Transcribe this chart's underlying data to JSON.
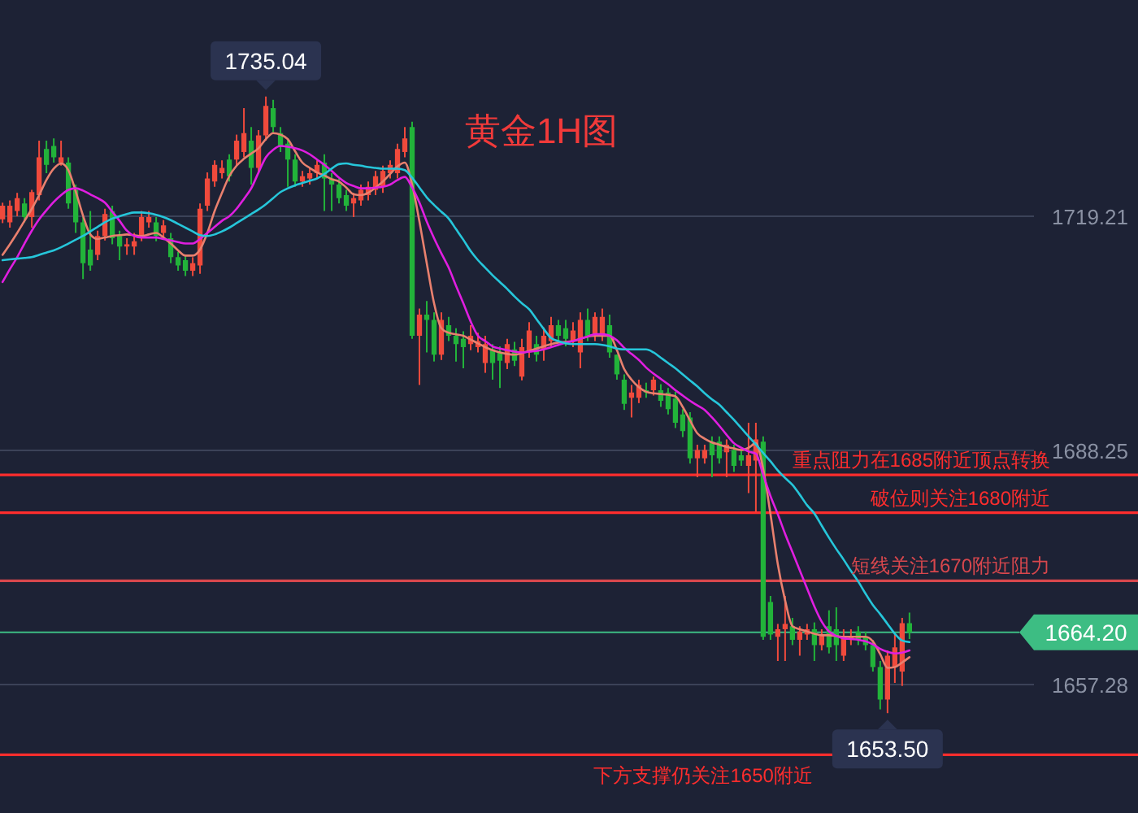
{
  "chart_data": {
    "type": "candlestick",
    "title": "黄金1H图",
    "categories": [
      null,
      null,
      null,
      null,
      null,
      null,
      null,
      null,
      null,
      null,
      null,
      null,
      null,
      null,
      null,
      null,
      null,
      null,
      null,
      null,
      null,
      null,
      null,
      null,
      null,
      null,
      null,
      null,
      null,
      null,
      null,
      null,
      null,
      null,
      null,
      null,
      null,
      null,
      null,
      null,
      null,
      null,
      null,
      null,
      null,
      null,
      null,
      null,
      null,
      null,
      null,
      null,
      null,
      null,
      null,
      null,
      null,
      null,
      null,
      null,
      null,
      null,
      null,
      null,
      null,
      null,
      null,
      null,
      null,
      null,
      null,
      null,
      null,
      null,
      null,
      null,
      null,
      null,
      null,
      null,
      null,
      null,
      null,
      null,
      null,
      null,
      null,
      null,
      null,
      null,
      null,
      null,
      null,
      null,
      null,
      null,
      null,
      null,
      null,
      null,
      null,
      null,
      null,
      null,
      null,
      null,
      null,
      null,
      null,
      null,
      null,
      null,
      null,
      null,
      null,
      null,
      null,
      null,
      null,
      null,
      null,
      null,
      null,
      null,
      null
    ],
    "ohlc": [
      [
        1718.8,
        1721.0,
        1718.3,
        1720.6
      ],
      [
        1718.4,
        1721.3,
        1717.7,
        1720.6
      ],
      [
        1719.9,
        1722.3,
        1719.2,
        1721.6
      ],
      [
        1720.9,
        1721.6,
        1718.4,
        1719.1
      ],
      [
        1719.1,
        1722.7,
        1717.7,
        1722.4
      ],
      [
        1722.0,
        1729.2,
        1721.3,
        1727.0
      ],
      [
        1728.1,
        1729.2,
        1724.9,
        1726.0
      ],
      [
        1728.5,
        1729.5,
        1726.3,
        1727.0
      ],
      [
        1726.3,
        1729.2,
        1725.9,
        1727.0
      ],
      [
        1726.3,
        1727.0,
        1720.2,
        1720.9
      ],
      [
        1722.7,
        1723.4,
        1717.0,
        1718.4
      ],
      [
        1718.4,
        1719.1,
        1710.9,
        1713.0
      ],
      [
        1714.8,
        1719.9,
        1712.0,
        1712.7
      ],
      [
        1714.1,
        1717.3,
        1713.4,
        1716.6
      ],
      [
        1716.6,
        1720.2,
        1716.0,
        1719.5
      ],
      [
        1719.9,
        1720.6,
        1715.5,
        1716.3
      ],
      [
        1716.6,
        1717.3,
        1713.4,
        1715.2
      ],
      [
        1715.2,
        1716.3,
        1714.1,
        1715.5
      ],
      [
        1715.2,
        1717.0,
        1714.1,
        1715.9
      ],
      [
        1716.6,
        1719.9,
        1715.9,
        1719.1
      ],
      [
        1718.4,
        1719.9,
        1717.7,
        1719.1
      ],
      [
        1718.4,
        1719.1,
        1715.9,
        1716.6
      ],
      [
        1717.0,
        1718.7,
        1716.3,
        1718.0
      ],
      [
        1716.3,
        1717.0,
        1713.0,
        1713.8
      ],
      [
        1713.8,
        1714.5,
        1712.0,
        1712.7
      ],
      [
        1713.4,
        1714.1,
        1711.3,
        1712.0
      ],
      [
        1712.0,
        1713.8,
        1711.3,
        1713.0
      ],
      [
        1712.7,
        1720.9,
        1711.6,
        1720.2
      ],
      [
        1720.6,
        1725.0,
        1719.9,
        1724.2
      ],
      [
        1723.8,
        1726.6,
        1723.1,
        1726.0
      ],
      [
        1724.9,
        1726.6,
        1724.2,
        1725.6
      ],
      [
        1726.7,
        1727.4,
        1723.8,
        1724.5
      ],
      [
        1726.7,
        1730.0,
        1725.9,
        1729.2
      ],
      [
        1727.7,
        1733.5,
        1727.0,
        1730.2
      ],
      [
        1729.2,
        1731.0,
        1723.4,
        1725.6
      ],
      [
        1725.6,
        1730.6,
        1724.9,
        1729.9
      ],
      [
        1729.9,
        1735.04,
        1729.2,
        1733.8
      ],
      [
        1733.5,
        1734.6,
        1730.3,
        1731.0
      ],
      [
        1730.2,
        1731.0,
        1727.7,
        1728.5
      ],
      [
        1728.8,
        1729.5,
        1723.1,
        1726.7
      ],
      [
        1726.7,
        1727.4,
        1723.1,
        1723.8
      ],
      [
        1723.8,
        1725.2,
        1723.1,
        1724.5
      ],
      [
        1724.2,
        1725.6,
        1723.4,
        1724.9
      ],
      [
        1724.9,
        1726.6,
        1724.2,
        1726.0
      ],
      [
        1726.3,
        1727.4,
        1719.9,
        1724.2
      ],
      [
        1724.2,
        1724.9,
        1719.9,
        1723.4
      ],
      [
        1723.4,
        1724.2,
        1720.9,
        1721.6
      ],
      [
        1722.0,
        1722.7,
        1719.9,
        1720.6
      ],
      [
        1720.9,
        1722.3,
        1719.1,
        1721.6
      ],
      [
        1721.3,
        1723.4,
        1720.6,
        1722.7
      ],
      [
        1722.0,
        1723.8,
        1721.3,
        1723.1
      ],
      [
        1722.7,
        1725.2,
        1722.0,
        1724.5
      ],
      [
        1723.1,
        1725.9,
        1722.3,
        1725.2
      ],
      [
        1724.9,
        1726.6,
        1724.2,
        1726.0
      ],
      [
        1724.9,
        1728.8,
        1724.2,
        1728.1
      ],
      [
        1727.7,
        1731.0,
        1727.0,
        1729.5
      ],
      [
        1731.0,
        1731.7,
        1703.0,
        1703.4
      ],
      [
        1703.4,
        1707.0,
        1696.9,
        1706.2
      ],
      [
        1706.2,
        1708.0,
        1701.2,
        1705.5
      ],
      [
        1705.5,
        1706.5,
        1700.0,
        1700.9
      ],
      [
        1700.9,
        1706.5,
        1700.2,
        1705.5
      ],
      [
        1704.8,
        1705.9,
        1702.7,
        1703.4
      ],
      [
        1703.4,
        1704.4,
        1700.0,
        1702.3
      ],
      [
        1703.0,
        1704.0,
        1699.1,
        1701.9
      ],
      [
        1702.3,
        1704.8,
        1701.5,
        1703.4
      ],
      [
        1701.9,
        1703.8,
        1701.2,
        1702.7
      ],
      [
        1699.8,
        1703.4,
        1698.5,
        1702.3
      ],
      [
        1701.6,
        1702.3,
        1697.6,
        1699.8
      ],
      [
        1701.2,
        1702.0,
        1696.5,
        1700.1
      ],
      [
        1699.8,
        1703.0,
        1699.0,
        1702.3
      ],
      [
        1701.6,
        1702.6,
        1699.4,
        1700.1
      ],
      [
        1698.0,
        1703.0,
        1697.5,
        1701.9
      ],
      [
        1701.2,
        1705.2,
        1700.5,
        1704.1
      ],
      [
        1702.3,
        1703.4,
        1700.0,
        1700.9
      ],
      [
        1701.6,
        1704.5,
        1700.1,
        1703.4
      ],
      [
        1702.7,
        1705.9,
        1702.0,
        1704.8
      ],
      [
        1704.8,
        1705.5,
        1702.7,
        1703.4
      ],
      [
        1704.4,
        1705.5,
        1702.0,
        1703.0
      ],
      [
        1702.7,
        1705.2,
        1701.9,
        1704.1
      ],
      [
        1701.2,
        1706.5,
        1699.1,
        1705.5
      ],
      [
        1705.5,
        1707.0,
        1702.7,
        1703.4
      ],
      [
        1703.7,
        1706.5,
        1702.7,
        1705.9
      ],
      [
        1703.4,
        1707.0,
        1702.7,
        1705.9
      ],
      [
        1704.8,
        1706.2,
        1700.5,
        1701.2
      ],
      [
        1700.9,
        1700.9,
        1697.6,
        1698.3
      ],
      [
        1697.6,
        1698.3,
        1693.6,
        1694.4
      ],
      [
        1695.2,
        1696.9,
        1692.6,
        1695.9
      ],
      [
        1695.2,
        1697.6,
        1694.5,
        1696.9
      ],
      [
        1696.2,
        1697.2,
        1695.2,
        1695.9
      ],
      [
        1696.2,
        1698.0,
        1695.5,
        1697.6
      ],
      [
        1696.2,
        1697.0,
        1694.0,
        1694.8
      ],
      [
        1695.9,
        1696.5,
        1693.0,
        1693.7
      ],
      [
        1695.1,
        1696.0,
        1691.2,
        1691.9
      ],
      [
        1693.0,
        1693.7,
        1690.0,
        1690.8
      ],
      [
        1692.6,
        1693.3,
        1686.5,
        1687.2
      ],
      [
        1687.2,
        1689.0,
        1684.7,
        1688.3
      ],
      [
        1687.2,
        1689.0,
        1686.5,
        1688.3
      ],
      [
        1689.4,
        1690.1,
        1684.7,
        1687.6
      ],
      [
        1689.4,
        1690.1,
        1686.5,
        1687.2
      ],
      [
        1688.0,
        1689.7,
        1684.7,
        1689.0
      ],
      [
        1688.3,
        1689.0,
        1685.4,
        1686.2
      ],
      [
        1687.6,
        1688.3,
        1686.2,
        1686.9
      ],
      [
        1686.2,
        1691.9,
        1682.6,
        1687.6
      ],
      [
        1686.9,
        1691.9,
        1680.1,
        1689.7
      ],
      [
        1689.4,
        1690.1,
        1663.2,
        1663.6
      ],
      [
        1668.2,
        1669.0,
        1663.2,
        1663.9
      ],
      [
        1663.6,
        1665.3,
        1660.4,
        1664.6
      ],
      [
        1664.6,
        1669.0,
        1660.4,
        1665.3
      ],
      [
        1665.0,
        1666.1,
        1662.5,
        1663.2
      ],
      [
        1663.2,
        1665.0,
        1661.1,
        1664.3
      ],
      [
        1663.9,
        1665.3,
        1663.2,
        1664.6
      ],
      [
        1664.6,
        1665.5,
        1660.4,
        1662.5
      ],
      [
        1662.5,
        1664.6,
        1661.8,
        1663.9
      ],
      [
        1665.0,
        1667.1,
        1661.4,
        1662.2
      ],
      [
        1664.6,
        1667.5,
        1660.4,
        1662.5
      ],
      [
        1661.1,
        1664.6,
        1660.4,
        1663.6
      ],
      [
        1663.2,
        1664.6,
        1662.5,
        1663.6
      ],
      [
        1664.3,
        1665.0,
        1662.5,
        1663.2
      ],
      [
        1663.6,
        1664.3,
        1661.8,
        1662.5
      ],
      [
        1662.5,
        1663.2,
        1659.0,
        1659.6
      ],
      [
        1659.6,
        1660.4,
        1654.0,
        1655.3
      ],
      [
        1655.3,
        1661.8,
        1653.5,
        1661.1
      ],
      [
        1659.6,
        1663.9,
        1657.5,
        1662.2
      ],
      [
        1659.0,
        1666.1,
        1657.1,
        1665.4
      ],
      [
        1665.4,
        1666.8,
        1663.3,
        1664.2
      ]
    ],
    "colors": [
      "#f04a3c",
      "#f04a3c",
      "#f04a3c",
      "#22b33a",
      "#f04a3c",
      "#f04a3c",
      "#22b33a",
      "#22b33a",
      "#f04a3c",
      "#22b33a",
      "#22b33a",
      "#22b33a",
      "#22b33a",
      "#f04a3c",
      "#f04a3c",
      "#22b33a",
      "#22b33a",
      "#f04a3c",
      "#f04a3c",
      "#f04a3c",
      "#f04a3c",
      "#22b33a",
      "#f04a3c",
      "#22b33a",
      "#22b33a",
      "#22b33a",
      "#f04a3c",
      "#f04a3c",
      "#f04a3c",
      "#f04a3c",
      "#f04a3c",
      "#22b33a",
      "#f04a3c",
      "#f04a3c",
      "#22b33a",
      "#f04a3c",
      "#f04a3c",
      "#22b33a",
      "#22b33a",
      "#22b33a",
      "#22b33a",
      "#f04a3c",
      "#f04a3c",
      "#f04a3c",
      "#22b33a",
      "#22b33a",
      "#22b33a",
      "#22b33a",
      "#f04a3c",
      "#f04a3c",
      "#f04a3c",
      "#f04a3c",
      "#f04a3c",
      "#f04a3c",
      "#f04a3c",
      "#f04a3c",
      "#22b33a",
      "#f04a3c",
      "#22b33a",
      "#22b33a",
      "#f04a3c",
      "#22b33a",
      "#22b33a",
      "#22b33a",
      "#f04a3c",
      "#f04a3c",
      "#f04a3c",
      "#22b33a",
      "#22b33a",
      "#f04a3c",
      "#22b33a",
      "#f04a3c",
      "#f04a3c",
      "#22b33a",
      "#f04a3c",
      "#f04a3c",
      "#22b33a",
      "#22b33a",
      "#f04a3c",
      "#f04a3c",
      "#22b33a",
      "#f04a3c",
      "#f04a3c",
      "#22b33a",
      "#22b33a",
      "#22b33a",
      "#f04a3c",
      "#f04a3c",
      "#22b33a",
      "#f04a3c",
      "#22b33a",
      "#22b33a",
      "#22b33a",
      "#22b33a",
      "#22b33a",
      "#f04a3c",
      "#f04a3c",
      "#22b33a",
      "#22b33a",
      "#f04a3c",
      "#22b33a",
      "#22b33a",
      "#f04a3c",
      "#f04a3c",
      "#22b33a",
      "#22b33a",
      "#f04a3c",
      "#f04a3c",
      "#22b33a",
      "#f04a3c",
      "#f04a3c",
      "#22b33a",
      "#f04a3c",
      "#22b33a",
      "#22b33a",
      "#f04a3c",
      "#f04a3c",
      "#22b33a",
      "#22b33a",
      "#22b33a",
      "#22b33a",
      "#f04a3c",
      "#f04a3c",
      "#f04a3c",
      "#22b33a"
    ],
    "series": [
      {
        "type": "line",
        "color": "#e9806e",
        "values": [
          1714.1,
          1715.5,
          1717.0,
          1718.6,
          1720.2,
          1722.0,
          1724.0,
          1725.5,
          1726.2,
          1725.3,
          1722.5,
          1719.3,
          1716.8,
          1716.2,
          1716.4,
          1716.6,
          1716.7,
          1716.8,
          1716.7,
          1716.6,
          1716.8,
          1717.0,
          1716.4,
          1715.6,
          1714.7,
          1714.0,
          1714.0,
          1714.8,
          1717.0,
          1719.9,
          1722.3,
          1724.5,
          1725.9,
          1726.8,
          1727.5,
          1728.2,
          1729.4,
          1730.2,
          1730.0,
          1729.4,
          1727.8,
          1726.3,
          1725.6,
          1725.0,
          1724.6,
          1724.1,
          1723.8,
          1723.0,
          1722.1,
          1722.0,
          1722.3,
          1723.0,
          1723.8,
          1724.8,
          1725.8,
          1726.3,
          1723.4,
          1718.5,
          1713.0,
          1707.7,
          1704.4,
          1703.8,
          1703.6,
          1703.4,
          1702.9,
          1702.4,
          1701.9,
          1701.5,
          1701.2,
          1701.0,
          1700.9,
          1701.1,
          1701.4,
          1701.7,
          1702.0,
          1702.3,
          1702.5,
          1702.6,
          1702.7,
          1703.0,
          1703.3,
          1703.4,
          1703.4,
          1703.4,
          1701.5,
          1699.0,
          1697.6,
          1696.6,
          1696.0,
          1695.8,
          1695.7,
          1695.6,
          1695.4,
          1694.0,
          1692.2,
          1690.5,
          1689.8,
          1689.3,
          1689.0,
          1688.7,
          1688.5,
          1688.3,
          1688.6,
          1689.2,
          1685.8,
          1679.8,
          1673.2,
          1668.4,
          1665.0,
          1664.6,
          1664.3,
          1664.0,
          1663.8,
          1663.8,
          1663.7,
          1663.6,
          1663.6,
          1663.6,
          1663.6,
          1663.0,
          1661.3,
          1659.5,
          1659.6,
          1660.2,
          1660.9
        ]
      },
      {
        "type": "line",
        "color": "#e01ee0",
        "values": [
          1710.5,
          1712.2,
          1713.8,
          1715.6,
          1717.3,
          1718.8,
          1720.0,
          1721.1,
          1722.0,
          1722.7,
          1722.9,
          1722.6,
          1722.1,
          1721.6,
          1721.0,
          1719.8,
          1718.6,
          1717.3,
          1716.6,
          1716.4,
          1716.4,
          1716.4,
          1716.2,
          1716.0,
          1715.8,
          1715.6,
          1715.6,
          1716.2,
          1717.0,
          1717.8,
          1718.6,
          1719.2,
          1720.2,
          1721.5,
          1722.9,
          1725.0,
          1727.0,
          1728.0,
          1728.5,
          1728.4,
          1728.2,
          1727.9,
          1727.4,
          1726.7,
          1726.0,
          1725.2,
          1724.3,
          1723.6,
          1723.2,
          1722.9,
          1722.9,
          1723.0,
          1723.1,
          1723.4,
          1724.0,
          1724.4,
          1723.0,
          1721.0,
          1718.5,
          1716.3,
          1714.3,
          1712.4,
          1710.0,
          1707.7,
          1705.3,
          1703.4,
          1702.7,
          1702.0,
          1701.7,
          1701.5,
          1701.3,
          1701.2,
          1701.3,
          1701.4,
          1701.6,
          1701.9,
          1702.2,
          1702.5,
          1702.7,
          1703.0,
          1703.3,
          1703.6,
          1703.6,
          1703.4,
          1702.8,
          1701.8,
          1701.0,
          1700.2,
          1699.2,
          1698.4,
          1697.7,
          1697.0,
          1696.2,
          1695.5,
          1694.8,
          1694.2,
          1693.6,
          1692.6,
          1691.5,
          1690.3,
          1689.2,
          1688.6,
          1688.1,
          1687.8,
          1685.0,
          1682.2,
          1679.8,
          1677.2,
          1674.8,
          1672.4,
          1670.0,
          1667.6,
          1665.6,
          1664.3,
          1663.7,
          1663.4,
          1663.3,
          1663.2,
          1663.0,
          1662.6,
          1662.0,
          1661.6,
          1661.4,
          1661.5,
          1661.8
        ]
      },
      {
        "type": "line",
        "color": "#26c6da",
        "values": [
          1713.4,
          1713.5,
          1713.6,
          1713.7,
          1713.8,
          1714.1,
          1714.4,
          1714.7,
          1715.1,
          1715.6,
          1716.1,
          1716.6,
          1717.2,
          1717.8,
          1718.4,
          1718.9,
          1719.2,
          1719.5,
          1719.7,
          1719.7,
          1719.6,
          1719.4,
          1719.1,
          1718.7,
          1718.2,
          1717.7,
          1717.2,
          1716.7,
          1716.6,
          1716.8,
          1717.2,
          1717.7,
          1718.3,
          1718.9,
          1719.5,
          1720.1,
          1720.8,
          1721.6,
          1722.4,
          1722.9,
          1723.3,
          1723.6,
          1723.9,
          1724.2,
          1724.8,
          1725.5,
          1726.1,
          1726.2,
          1726.0,
          1725.9,
          1725.7,
          1725.6,
          1725.5,
          1725.5,
          1725.5,
          1725.3,
          1724.3,
          1723.0,
          1721.7,
          1720.7,
          1719.8,
          1718.9,
          1717.5,
          1716.1,
          1714.6,
          1713.4,
          1712.4,
          1711.4,
          1710.5,
          1709.6,
          1708.6,
          1707.7,
          1706.9,
          1705.6,
          1704.3,
          1703.1,
          1702.7,
          1702.4,
          1702.3,
          1702.3,
          1702.3,
          1702.3,
          1702.2,
          1702.0,
          1701.7,
          1701.6,
          1701.6,
          1701.6,
          1701.6,
          1701.2,
          1700.5,
          1699.8,
          1699.1,
          1698.3,
          1697.5,
          1696.7,
          1695.8,
          1695.0,
          1694.3,
          1693.3,
          1692.3,
          1691.2,
          1690.1,
          1689.0,
          1687.9,
          1686.8,
          1685.6,
          1684.6,
          1683.7,
          1682.4,
          1681.0,
          1679.9,
          1678.3,
          1676.7,
          1675.2,
          1673.8,
          1672.3,
          1670.9,
          1669.3,
          1667.8,
          1666.6,
          1665.3,
          1664.0,
          1663.1,
          1662.9
        ]
      }
    ],
    "ylim": [
      1640.3,
      1747.8
    ],
    "yticks": [
      1719.21,
      1688.25,
      1657.28
    ],
    "grid": "y",
    "tick_labels": "y",
    "ref_lines": [
      {
        "axis": "y",
        "value": 1685,
        "label": "重点阻力在1685附近顶点转换",
        "color": "#ff2d2d"
      },
      {
        "axis": "y",
        "value": 1680,
        "label": "破位则关注1680附近",
        "color": "#ff2d2d"
      },
      {
        "axis": "y",
        "value": 1671,
        "label": "短线关注1670附近阻力",
        "color": "#d8474d"
      },
      {
        "axis": "y",
        "value": 1648,
        "label": "下方支撑仍关注1650附近",
        "color": "#ff2d2d"
      },
      {
        "axis": "y",
        "value": 1664.2,
        "label": "1664.20",
        "color": "#3dbd83"
      }
    ],
    "annotations": [
      {
        "text": "1735.04",
        "y": 1735.04
      },
      {
        "text": "1653.50",
        "y": 1653.5
      }
    ]
  }
}
